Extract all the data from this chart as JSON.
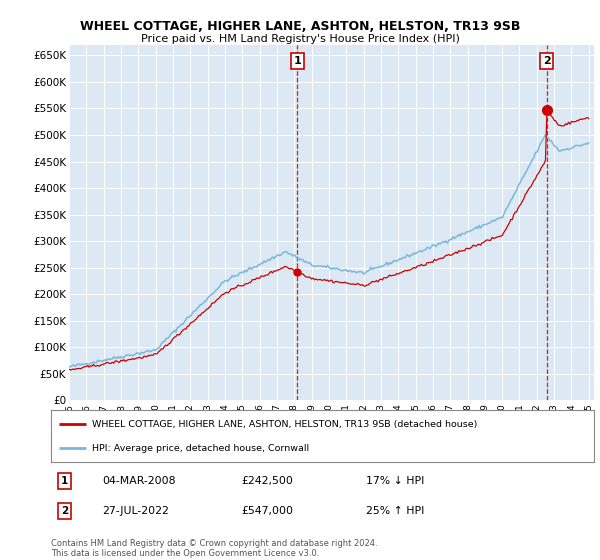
{
  "title": "WHEEL COTTAGE, HIGHER LANE, ASHTON, HELSTON, TR13 9SB",
  "subtitle": "Price paid vs. HM Land Registry's House Price Index (HPI)",
  "ylim": [
    0,
    670000
  ],
  "yticks": [
    0,
    50000,
    100000,
    150000,
    200000,
    250000,
    300000,
    350000,
    400000,
    450000,
    500000,
    550000,
    600000,
    650000
  ],
  "x_start_year": 1995,
  "x_end_year": 2025,
  "purchase1_year": 2008.17,
  "purchase1_price": 242500,
  "purchase1_label": "04-MAR-2008",
  "purchase1_hpi_diff": "17% ↓ HPI",
  "purchase2_year": 2022.57,
  "purchase2_price": 547000,
  "purchase2_label": "27-JUL-2022",
  "purchase2_hpi_diff": "25% ↑ HPI",
  "legend_line1": "WHEEL COTTAGE, HIGHER LANE, ASHTON, HELSTON, TR13 9SB (detached house)",
  "legend_line2": "HPI: Average price, detached house, Cornwall",
  "footnote": "Contains HM Land Registry data © Crown copyright and database right 2024.\nThis data is licensed under the Open Government Licence v3.0.",
  "hpi_color": "#7ab8d9",
  "price_color": "#cc0000",
  "plot_bg_color": "#dce9f5",
  "number_box_color": "#cc0000"
}
